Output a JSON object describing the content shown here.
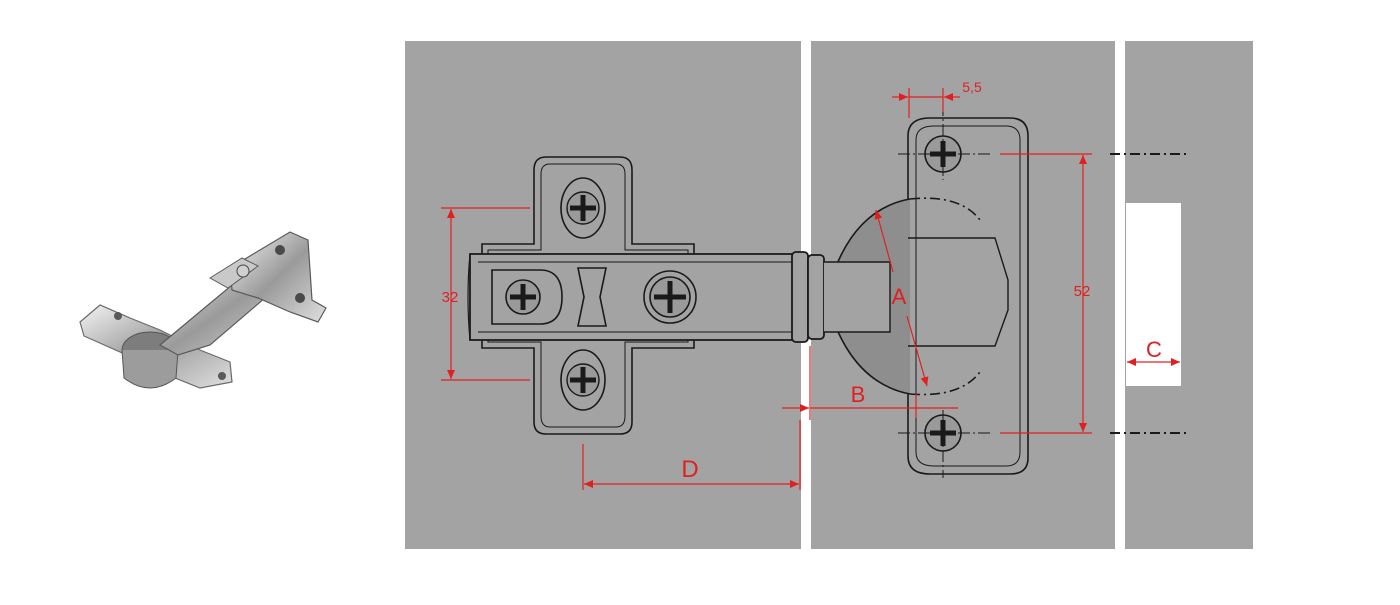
{
  "photo": {
    "subject": "concealed cabinet hinge"
  },
  "dimensions": {
    "mount_spacing": "32",
    "cup_screw_offset": "5,5",
    "cup_screw_spacing": "52",
    "label_a": "A",
    "label_b": "B",
    "label_c": "C",
    "label_d": "D"
  },
  "colors": {
    "panel": "#a3a3a3",
    "dimension": "#e02020",
    "outline": "#1a1a1a",
    "background": "#ffffff"
  }
}
